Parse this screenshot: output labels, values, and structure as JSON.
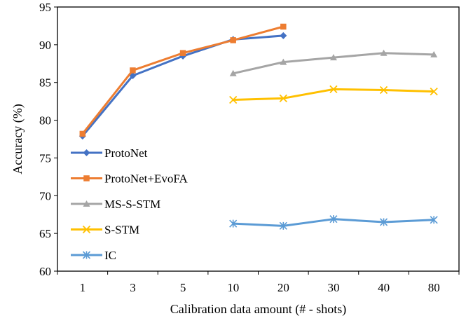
{
  "chart_data": {
    "type": "line",
    "title": "",
    "xlabel": "Calibration data amount (# - shots)",
    "ylabel": "Accuracy (%)",
    "categories": [
      "1",
      "3",
      "5",
      "10",
      "20",
      "30",
      "40",
      "80"
    ],
    "ylim": [
      60,
      95
    ],
    "yticks": [
      60,
      65,
      70,
      75,
      80,
      85,
      90,
      95
    ],
    "grid": false,
    "legend_position": "left",
    "series": [
      {
        "name": "ProtoNet",
        "color": "#4472C4",
        "marker": "diamond",
        "values": [
          77.9,
          85.9,
          88.5,
          90.7,
          91.2,
          null,
          null,
          null
        ]
      },
      {
        "name": "ProtoNet+EvoFA",
        "color": "#ED7D31",
        "marker": "square",
        "values": [
          78.2,
          86.6,
          88.9,
          90.6,
          92.4,
          null,
          null,
          null
        ]
      },
      {
        "name": "MS-S-STM",
        "color": "#A5A5A5",
        "marker": "triangle",
        "values": [
          null,
          null,
          null,
          86.2,
          87.7,
          88.3,
          88.9,
          88.7
        ]
      },
      {
        "name": "S-STM",
        "color": "#FFC000",
        "marker": "x",
        "values": [
          null,
          null,
          null,
          82.7,
          82.9,
          84.1,
          84.0,
          83.8
        ]
      },
      {
        "name": "IC",
        "color": "#5B9BD5",
        "marker": "asterisk",
        "values": [
          null,
          null,
          null,
          66.3,
          66.0,
          66.9,
          66.5,
          66.8
        ]
      }
    ]
  }
}
